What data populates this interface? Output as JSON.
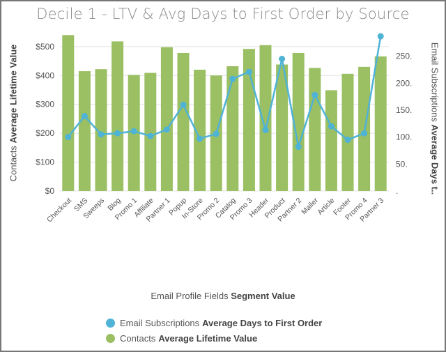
{
  "title": "Decile 1 - LTV & Avg Days to First Order by Source",
  "axes": {
    "left_prefix": "Contacts",
    "left_bold": "Average Lifetime Value",
    "right_prefix": "Email Subscriptions",
    "right_bold": "Average Days t..",
    "x_prefix": "Email Profile Fields",
    "x_bold": "Segment Value"
  },
  "legend": {
    "line_prefix": "Email Subscriptions",
    "line_bold": "Average Days to First Order",
    "bar_prefix": "Contacts",
    "bar_bold": "Average Lifetime Value"
  },
  "colors": {
    "bar": "#9bbf63",
    "line": "#4fb3d6",
    "grid": "#e4e4e4",
    "title": "#8a8a8a"
  },
  "chart_data": {
    "type": "bar",
    "title": "Decile 1 - LTV & Avg Days to First Order by Source",
    "xlabel": "Email Profile Fields Segment Value",
    "categories": [
      "Checkout",
      "SMS",
      "Sweeps",
      "Blog",
      "Promo 1",
      "Affiliate",
      "Partner 1",
      "Popup",
      "In-Store",
      "Promo 2",
      "Catalog",
      "Promo 3",
      "Header",
      "Product",
      "Partner 2",
      "Mailer",
      "Article",
      "Footer",
      "Promo 4",
      "Partner 3"
    ],
    "series": [
      {
        "name": "Contacts Average Lifetime Value",
        "type": "bar",
        "axis": "left",
        "values": [
          540,
          415,
          422,
          518,
          402,
          409,
          498,
          478,
          420,
          400,
          432,
          492,
          505,
          438,
          478,
          426,
          349,
          406,
          430,
          466
        ]
      },
      {
        "name": "Email Subscriptions Average Days to First Order",
        "type": "line",
        "axis": "right",
        "values": [
          100,
          139,
          105,
          107,
          111,
          102,
          114,
          160,
          97,
          106,
          208,
          221,
          113,
          245,
          82,
          178,
          120,
          95,
          107,
          287
        ]
      }
    ],
    "y_left": {
      "label": "Contacts Average Lifetime Value",
      "ylim": [
        0,
        560
      ],
      "ticks": [
        "$0",
        "$100",
        "$200",
        "$300",
        "$400",
        "$500"
      ],
      "tick_values": [
        0,
        100,
        200,
        300,
        400,
        500
      ]
    },
    "y_right": {
      "label": "Email Subscriptions Average Days t..",
      "ylim": [
        0,
        300
      ],
      "ticks": [
        ".",
        "50.",
        "100.",
        "150.",
        "200.",
        "250."
      ],
      "tick_values": [
        0,
        50,
        100,
        150,
        200,
        250
      ]
    },
    "grid": true,
    "legend_position": "bottom"
  }
}
